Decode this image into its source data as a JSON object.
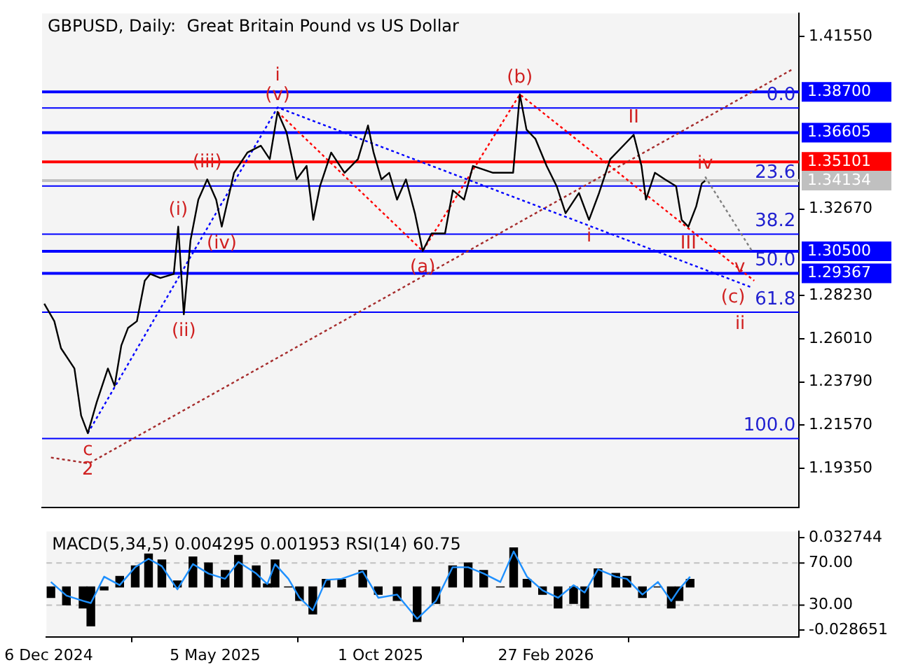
{
  "chart_data": [
    {
      "type": "line",
      "title": "GBPUSD, Daily:  Great Britain Pound vs US Dollar",
      "marker": "none",
      "legend": false,
      "grid": false,
      "tick_labels": "y",
      "xlim": [
        "2024-12-04",
        "2026-10-13"
      ],
      "ylim": [
        1.1734,
        1.4273
      ],
      "yticks": [
        {
          "value": 1.4155,
          "label": "1.41550"
        },
        {
          "value": 1.3267,
          "label": "1.32670"
        },
        {
          "value": 1.2823,
          "label": "1.28230"
        },
        {
          "value": 1.2601,
          "label": "1.26010"
        },
        {
          "value": 1.2379,
          "label": "1.23790"
        },
        {
          "value": 1.2157,
          "label": "1.21570"
        },
        {
          "value": 1.1935,
          "label": "1.19350"
        }
      ],
      "series": [
        {
          "color": "#000000",
          "x": [
            "2024-12-06",
            "2024-12-15",
            "2024-12-21",
            "2025-01-02",
            "2025-01-08",
            "2025-01-14",
            "2025-01-22",
            "2025-02-01",
            "2025-02-07",
            "2025-02-13",
            "2025-02-19",
            "2025-02-27",
            "2025-03-06",
            "2025-03-11",
            "2025-03-20",
            "2025-04-01",
            "2025-04-05",
            "2025-04-10",
            "2025-04-16",
            "2025-04-23",
            "2025-05-01",
            "2025-05-09",
            "2025-05-14",
            "2025-05-25",
            "2025-06-06",
            "2025-06-18",
            "2025-06-26",
            "2025-07-03",
            "2025-07-11",
            "2025-07-20",
            "2025-07-29",
            "2025-08-04",
            "2025-08-10",
            "2025-08-20",
            "2025-09-01",
            "2025-09-13",
            "2025-09-22",
            "2025-09-27",
            "2025-10-04",
            "2025-10-11",
            "2025-10-18",
            "2025-10-26",
            "2025-11-03",
            "2025-11-10",
            "2025-11-18",
            "2025-11-30",
            "2025-12-07",
            "2025-12-17",
            "2025-12-25",
            "2026-01-12",
            "2026-01-30",
            "2026-02-05",
            "2026-02-11",
            "2026-02-19",
            "2026-03-01",
            "2026-03-10",
            "2026-03-18",
            "2026-03-30",
            "2026-04-08",
            "2026-04-17",
            "2026-04-27",
            "2026-05-11",
            "2026-05-18",
            "2026-05-25",
            "2026-05-29",
            "2026-06-06",
            "2026-06-15",
            "2026-06-25",
            "2026-06-30",
            "2026-07-06",
            "2026-07-13",
            "2026-07-18",
            "2026-07-21"
          ],
          "values": [
            1.2781,
            1.2691,
            1.2552,
            1.2448,
            1.2206,
            1.2115,
            1.2275,
            1.2448,
            1.2358,
            1.2566,
            1.2656,
            1.2691,
            1.2899,
            1.2934,
            1.2913,
            1.2934,
            1.3177,
            1.2726,
            1.3107,
            1.3316,
            1.342,
            1.3316,
            1.3177,
            1.3454,
            1.3558,
            1.3593,
            1.3524,
            1.3767,
            1.3662,
            1.342,
            1.3489,
            1.3212,
            1.3385,
            1.3558,
            1.3454,
            1.3524,
            1.3697,
            1.3558,
            1.342,
            1.3454,
            1.3316,
            1.342,
            1.3246,
            1.3052,
            1.3142,
            1.3142,
            1.3364,
            1.3316,
            1.3489,
            1.3454,
            1.3454,
            1.3857,
            1.3676,
            1.3628,
            1.3489,
            1.3385,
            1.3246,
            1.335,
            1.3212,
            1.335,
            1.3524,
            1.3607,
            1.3649,
            1.3489,
            1.3316,
            1.3454,
            1.342,
            1.3385,
            1.3212,
            1.3177,
            1.3281,
            1.3399,
            1.3413
          ]
        },
        {
          "color": "#0000ff",
          "line_style": "dotted",
          "x": [
            "2025-01-14",
            "2025-07-03",
            "2026-09-01"
          ],
          "values": [
            1.2115,
            1.379,
            1.2864
          ]
        },
        {
          "color": "#ff0000",
          "line_style": "dotted",
          "x": [
            "2025-07-03",
            "2025-11-10",
            "2026-02-05",
            "2026-09-03"
          ],
          "values": [
            1.3767,
            1.3052,
            1.3857,
            1.2899
          ]
        },
        {
          "color": "#a52a2a",
          "line_style": "dotted",
          "x": [
            "2024-12-12",
            "2025-01-15",
            "2026-10-07"
          ],
          "values": [
            1.199,
            1.196,
            1.3985
          ]
        },
        {
          "color": "#808080",
          "line_style": "dotted",
          "x": [
            "2026-07-21",
            "2026-09-01"
          ],
          "values": [
            1.3434,
            1.3052
          ]
        }
      ],
      "ref_lines": [
        {
          "axis": "y",
          "value": 1.387,
          "label": "1.38700",
          "color": "#0000ff"
        },
        {
          "axis": "y",
          "value": 1.36605,
          "label": "1.36605",
          "color": "#0000ff"
        },
        {
          "axis": "y",
          "value": 1.35101,
          "label": "1.35101",
          "color": "#ff0000"
        },
        {
          "axis": "y",
          "value": 1.34134,
          "label": "1.34134",
          "color": "#c0c0c0"
        },
        {
          "axis": "y",
          "value": 1.305,
          "label": "1.30500",
          "color": "#0000ff"
        },
        {
          "axis": "y",
          "value": 1.29367,
          "label": "1.29367",
          "color": "#0000ff"
        },
        {
          "axis": "y",
          "value": 1.3787,
          "color": "#0000ff"
        },
        {
          "axis": "y",
          "value": 1.3386,
          "color": "#0000ff"
        },
        {
          "axis": "y",
          "value": 1.3138,
          "color": "#0000ff"
        },
        {
          "axis": "y",
          "value": 1.2737,
          "color": "#0000ff"
        },
        {
          "axis": "y",
          "value": 1.2088,
          "color": "#0000ff"
        }
      ],
      "annotations": [
        {
          "text": "0.0",
          "x": "2026-10-10",
          "y": 1.3787
        },
        {
          "text": "23.6",
          "x": "2026-10-10",
          "y": 1.3386
        },
        {
          "text": "38.2",
          "x": "2026-10-10",
          "y": 1.3138
        },
        {
          "text": "50.0",
          "x": "2026-10-10",
          "y": 1.29367
        },
        {
          "text": "61.8",
          "x": "2026-10-10",
          "y": 1.2737
        },
        {
          "text": "100.0",
          "x": "2026-10-10",
          "y": 1.2088
        },
        {
          "text": "(v)",
          "x": "2025-07-03",
          "y": 1.3767
        },
        {
          "text": "i",
          "x": "2025-07-03",
          "y": 1.3767
        },
        {
          "text": "(iii)",
          "x": "2025-05-01",
          "y": 1.342
        },
        {
          "text": "(i)",
          "x": "2025-04-05",
          "y": 1.3177
        },
        {
          "text": "(iv)",
          "x": "2025-05-14",
          "y": 1.3177
        },
        {
          "text": "(ii)",
          "x": "2025-04-10",
          "y": 1.2726
        },
        {
          "text": "c",
          "x": "2025-01-14",
          "y": 1.2115
        },
        {
          "text": "2",
          "x": "2025-01-14",
          "y": 1.2115
        },
        {
          "text": "(a)",
          "x": "2025-11-10",
          "y": 1.3052
        },
        {
          "text": "(b)",
          "x": "2026-02-05",
          "y": 1.3857
        },
        {
          "text": "II",
          "x": "2026-05-18",
          "y": 1.3649
        },
        {
          "text": "iv",
          "x": "2026-07-21",
          "y": 1.3413
        },
        {
          "text": "i",
          "x": "2026-04-08",
          "y": 1.3212
        },
        {
          "text": "III",
          "x": "2026-07-06",
          "y": 1.3177
        },
        {
          "text": "v",
          "x": "2026-09-01",
          "y": 1.3052
        },
        {
          "text": "(c)",
          "x": "2026-09-03",
          "y": 1.2899
        },
        {
          "text": "ii",
          "x": "2026-09-01",
          "y": 1.2864
        }
      ]
    },
    {
      "type": "bar",
      "title": "MACD(5,34,5) 0.004295 0.001953 RSI(14) 60.75",
      "marker": "none",
      "legend": false,
      "grid": false,
      "xlim": [
        "2024-12-04",
        "2026-10-13"
      ],
      "xticks": [
        {
          "value": "2024-12-06",
          "label": "6 Dec 2024"
        },
        {
          "value": "2025-05-05",
          "label": "5 May 2025"
        },
        {
          "value": "2025-10-01",
          "label": "1 Oct 2025"
        },
        {
          "value": "2026-02-27",
          "label": "27 Feb 2026"
        }
      ],
      "ylim": [
        -0.0332,
        0.037
      ],
      "yticks": [
        0.032744,
        -0.028651
      ],
      "y2lim": [
        0,
        100
      ],
      "y2ticks": [
        {
          "value": 70,
          "label": "70.00"
        },
        {
          "value": 30,
          "label": "30.00"
        }
      ],
      "x": [
        "2024-12-08",
        "2024-12-22",
        "2025-01-06",
        "2025-01-13",
        "2025-01-25",
        "2025-02-08",
        "2025-02-22",
        "2025-03-06",
        "2025-03-18",
        "2025-04-01",
        "2025-04-15",
        "2025-04-29",
        "2025-05-14",
        "2025-05-26",
        "2025-06-11",
        "2025-06-21",
        "2025-06-28",
        "2025-07-10",
        "2025-07-20",
        "2025-08-01",
        "2025-08-13",
        "2025-08-27",
        "2025-09-15",
        "2025-09-29",
        "2025-10-16",
        "2025-11-03",
        "2025-11-20",
        "2025-12-05",
        "2025-12-19",
        "2026-01-02",
        "2026-01-17",
        "2026-01-29",
        "2026-02-10",
        "2026-02-24",
        "2026-03-10",
        "2026-03-24",
        "2026-04-03",
        "2026-04-15",
        "2026-05-01",
        "2026-05-11",
        "2026-05-25",
        "2026-06-08",
        "2026-06-20",
        "2026-06-27",
        "2026-07-07"
      ],
      "series": [
        {
          "color": "#000000",
          "values": [
            -0.007,
            -0.012,
            -0.014,
            -0.026,
            -0.002,
            0.007,
            0.014,
            0.022,
            0.018,
            0.004,
            0.02,
            0.016,
            0.011,
            0.021,
            0.014,
            0.002,
            0.018,
            0,
            -0.009,
            -0.018,
            0.005,
            0.005,
            0.011,
            -0.005,
            -0.009,
            -0.023,
            -0.011,
            0.014,
            0.016,
            0.011,
            0,
            0.026,
            0.005,
            -0.005,
            -0.014,
            -0.011,
            -0.014,
            0.012,
            0.009,
            0.007,
            -0.007,
            0,
            -0.014,
            -0.009,
            0.005
          ]
        },
        {
          "type": "line",
          "axis": "y2",
          "color": "#1e90ff",
          "values": [
            52,
            39,
            34,
            32,
            57,
            49,
            66,
            74,
            67,
            45,
            69,
            60,
            55,
            71,
            60,
            50,
            69,
            55,
            37,
            25,
            54,
            55,
            62,
            37,
            40,
            17,
            34,
            66,
            66,
            60,
            52,
            81,
            57,
            44,
            37,
            49,
            42,
            64,
            57,
            55,
            40,
            52,
            34,
            45,
            57
          ]
        }
      ],
      "ref_lines": [
        {
          "axis": "y2",
          "value": 70,
          "color": "#c0c0c0",
          "line_style": "dashed"
        },
        {
          "axis": "y2",
          "value": 30,
          "color": "#c0c0c0",
          "line_style": "dashed"
        }
      ]
    }
  ]
}
